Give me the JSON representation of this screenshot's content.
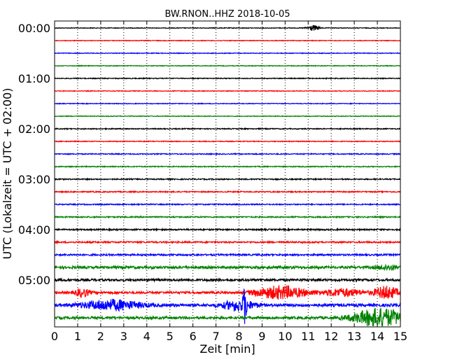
{
  "chart_data": {
    "type": "line",
    "title": "BW.RNON..HHZ 2018-10-05",
    "xlabel": "Zeit  [min]",
    "ylabel": "UTC (Lokalzeit = UTC + 02:00)",
    "xlim": [
      0,
      15
    ],
    "x_ticks": [
      "0",
      "1",
      "2",
      "3",
      "4",
      "5",
      "6",
      "7",
      "8",
      "9",
      "10",
      "11",
      "12",
      "13",
      "14",
      "15"
    ],
    "y_tick_labels": [
      "00:00",
      "01:00",
      "02:00",
      "03:00",
      "04:00",
      "05:00"
    ],
    "grid": "vertical dotted lines at each minute",
    "trace_interval_min": 15,
    "color_cycle": [
      "#000000",
      "#ff0000",
      "#0000ff",
      "#008000"
    ],
    "traces": [
      {
        "start_utc": "00:00",
        "noise": 0.5,
        "events": [
          {
            "t": 11.2,
            "w": 0.5,
            "a": 4
          }
        ]
      },
      {
        "start_utc": "00:15",
        "noise": 0.5,
        "events": []
      },
      {
        "start_utc": "00:30",
        "noise": 0.5,
        "events": []
      },
      {
        "start_utc": "00:45",
        "noise": 0.5,
        "events": []
      },
      {
        "start_utc": "01:00",
        "noise": 0.6,
        "events": []
      },
      {
        "start_utc": "01:15",
        "noise": 0.5,
        "events": []
      },
      {
        "start_utc": "01:30",
        "noise": 0.5,
        "events": []
      },
      {
        "start_utc": "01:45",
        "noise": 0.5,
        "events": []
      },
      {
        "start_utc": "02:00",
        "noise": 0.7,
        "events": []
      },
      {
        "start_utc": "02:15",
        "noise": 0.6,
        "events": []
      },
      {
        "start_utc": "02:30",
        "noise": 0.7,
        "events": []
      },
      {
        "start_utc": "02:45",
        "noise": 0.7,
        "events": []
      },
      {
        "start_utc": "03:00",
        "noise": 0.8,
        "events": []
      },
      {
        "start_utc": "03:15",
        "noise": 0.8,
        "events": []
      },
      {
        "start_utc": "03:30",
        "noise": 0.8,
        "events": []
      },
      {
        "start_utc": "03:45",
        "noise": 0.9,
        "events": []
      },
      {
        "start_utc": "04:00",
        "noise": 1.0,
        "events": []
      },
      {
        "start_utc": "04:15",
        "noise": 1.1,
        "events": []
      },
      {
        "start_utc": "04:30",
        "noise": 1.2,
        "events": []
      },
      {
        "start_utc": "04:45",
        "noise": 1.8,
        "events": [
          {
            "t": 14.5,
            "w": 1.0,
            "a": 3
          }
        ]
      },
      {
        "start_utc": "05:00",
        "noise": 1.6,
        "events": []
      },
      {
        "start_utc": "05:15",
        "noise": 1.6,
        "events": [
          {
            "t": 1.2,
            "w": 0.6,
            "a": 6
          },
          {
            "t": 9.8,
            "w": 2.2,
            "a": 9
          },
          {
            "t": 12.5,
            "w": 1.8,
            "a": 5
          },
          {
            "t": 14.4,
            "w": 1.0,
            "a": 9
          }
        ]
      },
      {
        "start_utc": "05:30",
        "noise": 2.0,
        "events": [
          {
            "t": 2.5,
            "w": 2.5,
            "a": 7
          },
          {
            "t": 8.0,
            "w": 1.4,
            "a": 7
          },
          {
            "t": 8.25,
            "w": 0.15,
            "a": 22
          }
        ]
      },
      {
        "start_utc": "05:45",
        "noise": 1.8,
        "events": [
          {
            "t": 14.1,
            "w": 2.2,
            "a": 13
          }
        ]
      }
    ]
  }
}
